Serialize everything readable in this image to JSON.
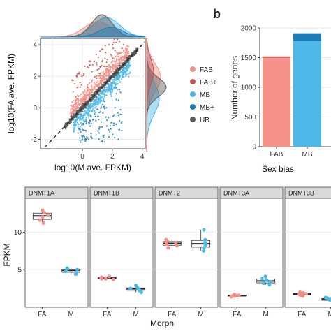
{
  "panel_b": {
    "label": "b"
  },
  "colors": {
    "FAB": "#f4928a",
    "FAB+": "#c1524e",
    "MB": "#4cb8e8",
    "MB+": "#1a7db8",
    "UB": "#5a5a5a"
  },
  "chart_data": [
    {
      "type": "scatter",
      "xlabel": "log10(M ave. FPKM)",
      "ylabel": "log10(FA ave. FPKM)",
      "xlim": [
        -2.8,
        4.2
      ],
      "ylim": [
        -2.6,
        4.4
      ],
      "x_ticks": [
        "0",
        "2",
        "4"
      ],
      "y_ticks": [
        "-2",
        "0",
        "2",
        "4"
      ],
      "legend": {
        "placement": "right",
        "entries": [
          "FAB",
          "FAB+",
          "MB",
          "MB+",
          "UB"
        ]
      },
      "reference_line": "y = x (dashed)",
      "series": [
        {
          "name": "UB",
          "description": "tight cloud along diagonal",
          "x_range": [
            -1.5,
            3.8
          ]
        },
        {
          "name": "FAB",
          "description": "above diagonal",
          "x_range": [
            -1.0,
            3.5
          ]
        },
        {
          "name": "FAB+",
          "description": "scattered well above diagonal",
          "x_range": [
            -1.0,
            3.5
          ]
        },
        {
          "name": "MB",
          "description": "below diagonal",
          "x_range": [
            -1.0,
            3.5
          ]
        },
        {
          "name": "MB+",
          "description": "scattered well below diagonal",
          "x_range": [
            -0.5,
            3.5
          ]
        }
      ]
    },
    {
      "type": "bar",
      "title": "",
      "xlabel": "Sex bias",
      "ylabel": "Number of genes",
      "categories": [
        "FAB",
        "MB"
      ],
      "ylim": [
        0,
        2000
      ],
      "y_ticks": [
        "0",
        "500",
        "1000",
        "1500",
        "2000"
      ],
      "series": [
        {
          "name": "FAB",
          "values": [
            1500,
            0
          ]
        },
        {
          "name": "FAB+",
          "values": [
            20,
            0
          ]
        },
        {
          "name": "MB",
          "values": [
            0,
            1780
          ]
        },
        {
          "name": "MB+",
          "values": [
            0,
            130
          ]
        }
      ]
    },
    {
      "type": "box",
      "xlabel": "Morph",
      "ylabel": "FPKM",
      "y_ticks": [
        "5",
        "10"
      ],
      "ylim": [
        0,
        14.5
      ],
      "x_categories": [
        "FA",
        "M"
      ],
      "facets": [
        {
          "name": "DNMT1A",
          "FA": [
            11.2,
            11.6,
            12.0,
            12.3,
            12.6,
            12.9
          ],
          "M": [
            4.4,
            4.6,
            4.8,
            5.0,
            5.1,
            5.2
          ]
        },
        {
          "name": "DNMT1B",
          "FA": [
            3.7,
            3.8,
            3.8,
            3.9,
            4.0,
            4.1
          ],
          "M": [
            2.0,
            2.2,
            2.4,
            2.5,
            2.6,
            2.9
          ]
        },
        {
          "name": "DNMT2",
          "FA": [
            7.9,
            8.2,
            8.4,
            8.6,
            8.8,
            9.0
          ],
          "M": [
            7.5,
            7.9,
            8.3,
            8.6,
            9.0,
            10.3
          ]
        },
        {
          "name": "DNMT3A",
          "FA": [
            1.4,
            1.5,
            1.5,
            1.6,
            1.6,
            1.7
          ],
          "M": [
            3.0,
            3.2,
            3.4,
            3.6,
            3.8,
            4.1
          ]
        },
        {
          "name": "DNMT3B",
          "FA": [
            1.5,
            1.6,
            1.7,
            1.8,
            1.9,
            2.0
          ],
          "M": [
            0.8,
            0.9,
            1.0,
            1.1,
            1.2,
            1.3
          ]
        }
      ]
    }
  ]
}
